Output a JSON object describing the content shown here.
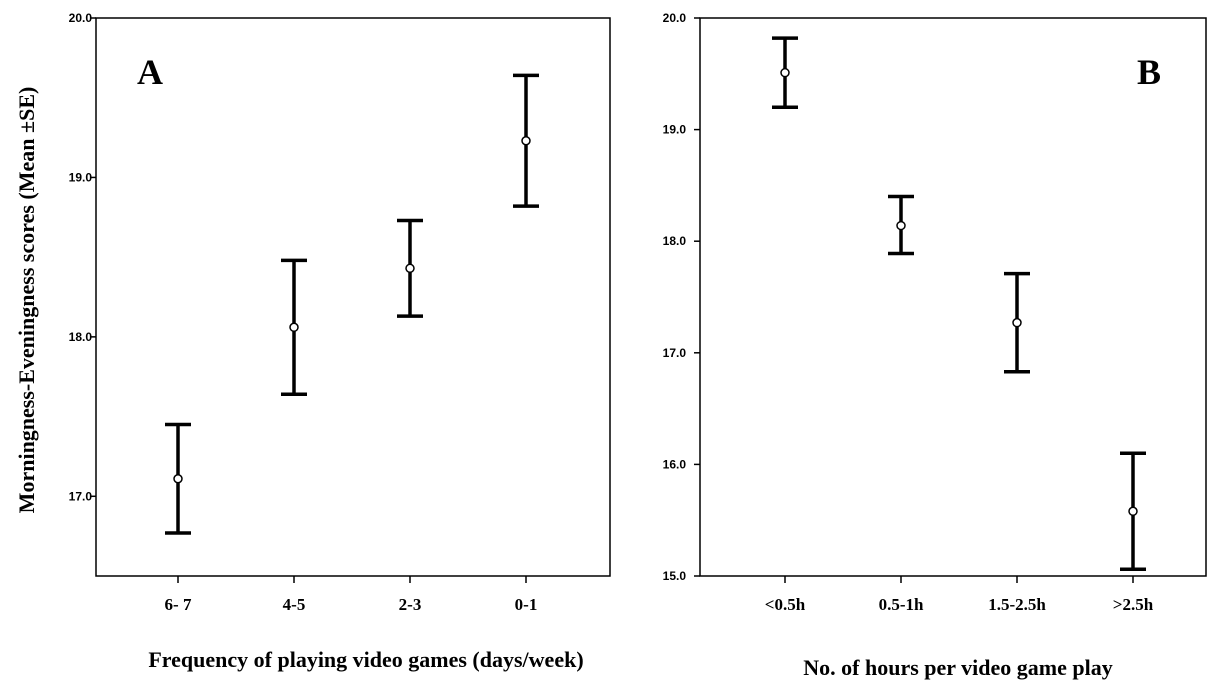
{
  "chart_data": [
    {
      "type": "errorbar",
      "panel_label": "A",
      "ylabel": "Morningness-Eveningness scores (Mean ±SE)",
      "xlabel": "Frequency of playing video games (days/week)",
      "categories": [
        "6- 7",
        "4-5",
        "2-3",
        "0-1"
      ],
      "mean": [
        17.11,
        18.06,
        18.43,
        19.23
      ],
      "lower": [
        16.77,
        17.64,
        18.13,
        18.82
      ],
      "upper": [
        17.45,
        18.48,
        18.73,
        19.64
      ],
      "ylim": [
        16.5,
        20.0
      ],
      "yticks": [
        "17.0",
        "18.0",
        "19.0",
        "20.0"
      ],
      "yticks_values": [
        17.0,
        18.0,
        19.0,
        20.0
      ]
    },
    {
      "type": "errorbar",
      "panel_label": "B",
      "ylabel": "",
      "xlabel": "No. of hours per video game play",
      "categories": [
        "<0.5h",
        "0.5-1h",
        "1.5-2.5h",
        ">2.5h"
      ],
      "mean": [
        19.51,
        18.14,
        17.27,
        15.58
      ],
      "lower": [
        19.2,
        17.89,
        16.83,
        15.06
      ],
      "upper": [
        19.82,
        18.4,
        17.71,
        16.1
      ],
      "ylim": [
        15.0,
        20.0
      ],
      "yticks": [
        "15.0",
        "16.0",
        "17.0",
        "18.0",
        "19.0",
        "20.0"
      ],
      "yticks_values": [
        15.0,
        16.0,
        17.0,
        18.0,
        19.0,
        20.0
      ]
    }
  ]
}
